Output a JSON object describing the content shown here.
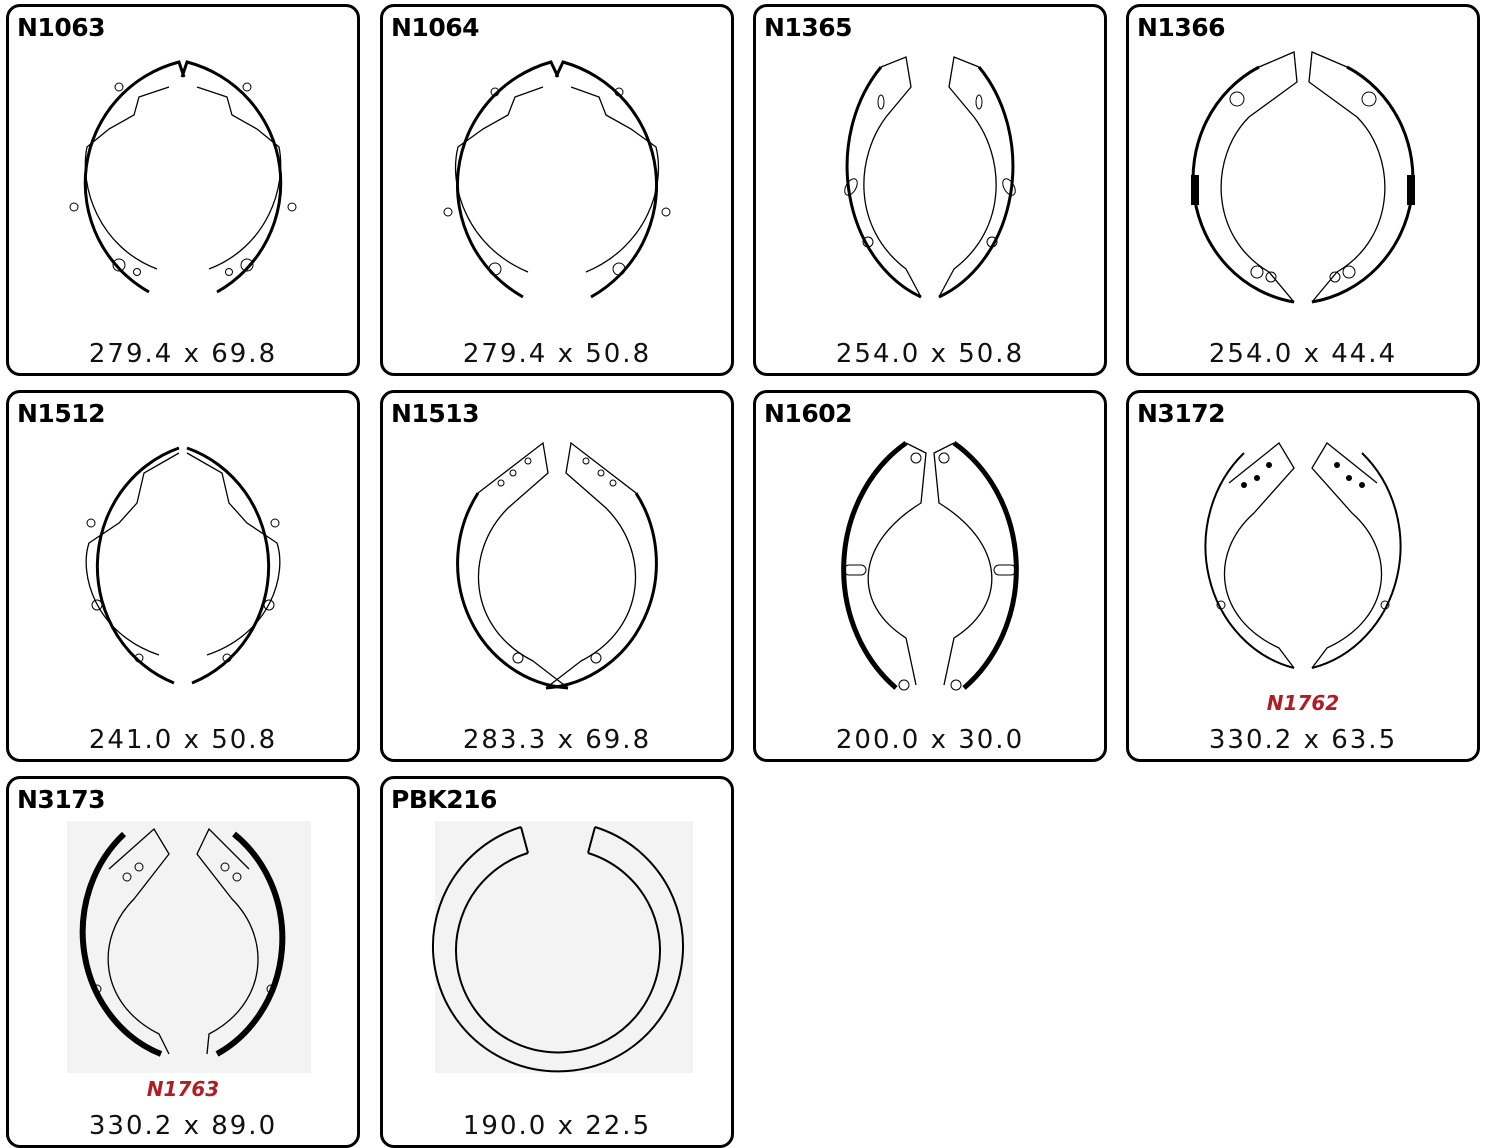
{
  "parts": [
    {
      "code": "N1063",
      "dims": "279.4 x 69.8",
      "alt": "",
      "shape": "shoe",
      "icon": "brake-shoe-pair-icon"
    },
    {
      "code": "N1064",
      "dims": "279.4 x 50.8",
      "alt": "",
      "shape": "shoe",
      "icon": "brake-shoe-pair-icon"
    },
    {
      "code": "N1365",
      "dims": "254.0 x 50.8",
      "alt": "",
      "shape": "shoe-narrow",
      "icon": "brake-shoe-pair-icon"
    },
    {
      "code": "N1366",
      "dims": "254.0 x 44.4",
      "alt": "",
      "shape": "shoe-holes",
      "icon": "brake-shoe-pair-icon"
    },
    {
      "code": "N1512",
      "dims": "241.0 x 50.8",
      "alt": "",
      "shape": "shoe",
      "icon": "brake-shoe-pair-icon"
    },
    {
      "code": "N1513",
      "dims": "283.3 x 69.8",
      "alt": "",
      "shape": "shoe-holes",
      "icon": "brake-shoe-pair-icon"
    },
    {
      "code": "N1602",
      "dims": "200.0 x 30.0",
      "alt": "",
      "shape": "shoe-thick",
      "icon": "brake-shoe-pair-icon"
    },
    {
      "code": "N3172",
      "dims": "330.2 x 63.5",
      "alt": "N1762",
      "shape": "shoe-holes",
      "icon": "brake-shoe-pair-icon"
    },
    {
      "code": "N3173",
      "dims": "330.2 x 89.0",
      "alt": "N1763",
      "shape": "shoe-thick",
      "icon": "brake-shoe-pair-icon"
    },
    {
      "code": "PBK216",
      "dims": "190.0 x 22.5",
      "alt": "",
      "shape": "ring",
      "icon": "parking-brake-ring-icon"
    }
  ]
}
